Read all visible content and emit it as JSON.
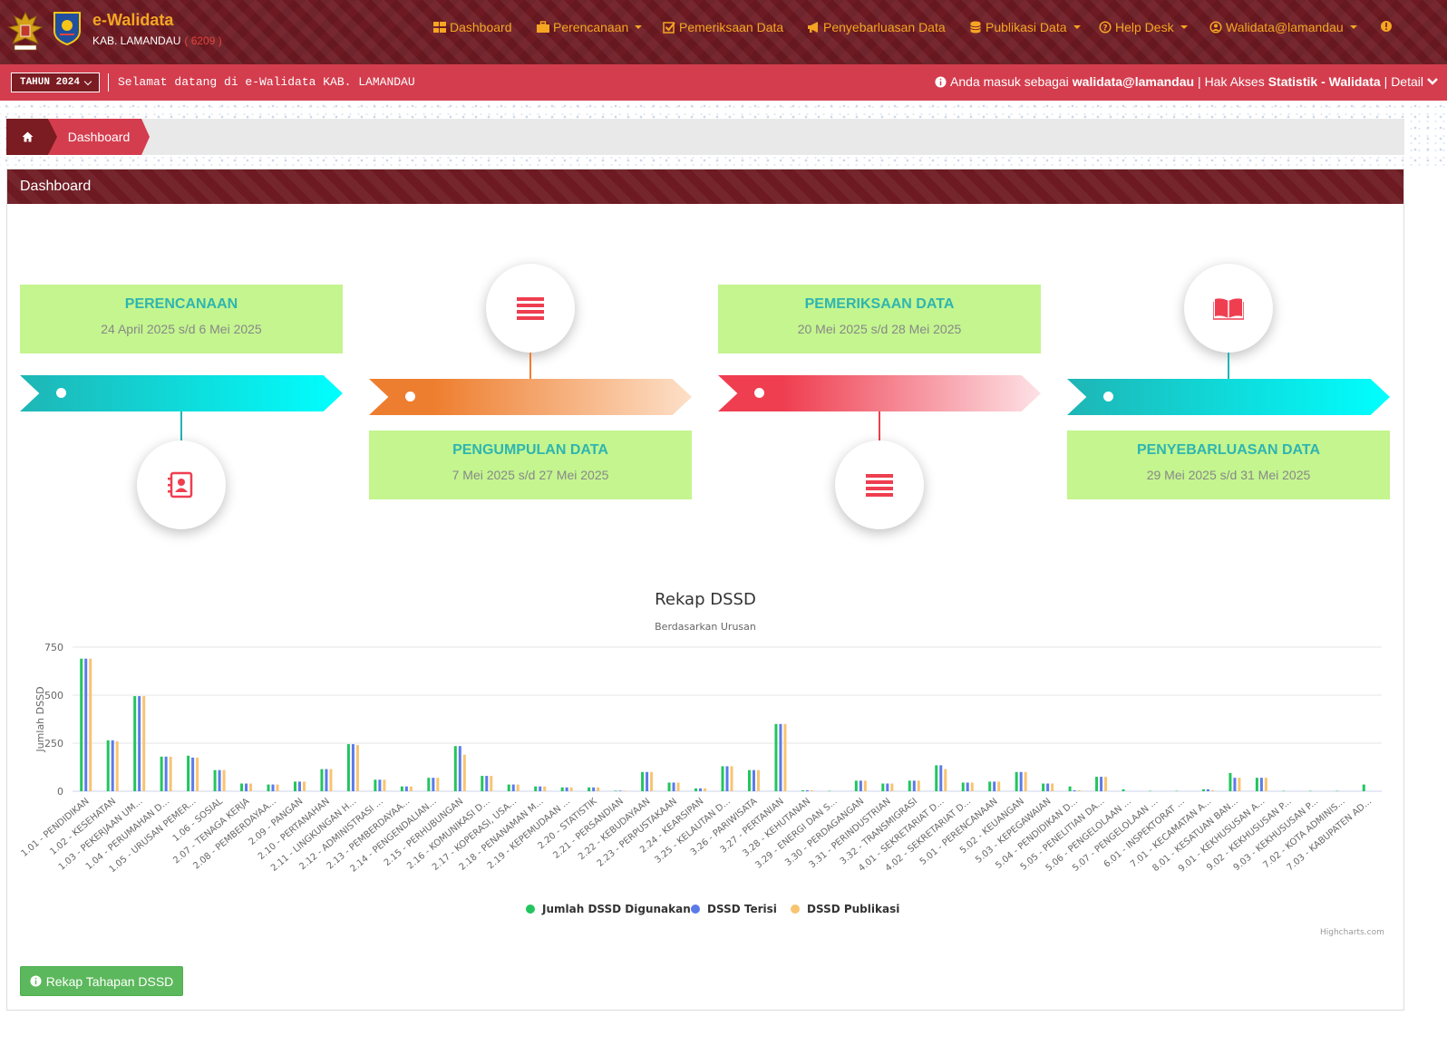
{
  "brand": {
    "title": "e-Walidata",
    "region": "KAB. LAMANDAU",
    "code": "( 6209 )"
  },
  "nav": {
    "dashboard": "Dashboard",
    "perencanaan": "Perencanaan",
    "pemeriksaan": "Pemeriksaan Data",
    "penyebarluasan": "Penyebarluasan Data",
    "publikasi": "Publikasi Data",
    "helpdesk": "Help Desk",
    "user": "Walidata@lamandau"
  },
  "subbar": {
    "year": "TAHUN 2024",
    "welcome": "Selamat datang di e-Walidata KAB. LAMANDAU",
    "login_prefix": "Anda masuk sebagai",
    "login_user": "walidata@lamandau",
    "access_prefix": "| Hak Akses",
    "access_role": "Statistik - Walidata",
    "detail": "| Detail"
  },
  "breadcrumb": {
    "current": "Dashboard"
  },
  "panel": {
    "title": "Dashboard"
  },
  "stages": [
    {
      "title": "PERENCANAAN",
      "date": "24 April 2025 s/d 6 Mei 2025",
      "icon": "address-book-icon",
      "color": "#1fb5b5"
    },
    {
      "title": "PENGUMPULAN DATA",
      "date": "7 Mei 2025 s/d 27 Mei 2025",
      "icon": "list-icon",
      "color": "#ee7e2f"
    },
    {
      "title": "PEMERIKSAAN DATA",
      "date": "20 Mei 2025 s/d 28 Mei 2025",
      "icon": "list-icon",
      "color": "#ef3e50"
    },
    {
      "title": "PENYEBARLUASAN DATA",
      "date": "29 Mei 2025 s/d 31 Mei 2025",
      "icon": "book-icon",
      "color": "#1fb5b5"
    }
  ],
  "button": {
    "rekap": "Rekap Tahapan DSSD"
  },
  "chart_data": {
    "type": "bar",
    "title": "Rekap DSSD",
    "subtitle": "Berdasarkan Urusan",
    "ylabel": "Jumlah DSSD",
    "ylim": [
      0,
      750
    ],
    "yticks": [
      0,
      250,
      500,
      750
    ],
    "credit": "Highcharts.com",
    "legend": "bottom-center",
    "categories": [
      "1.01 - PENDIDIKAN",
      "1.02 - KESEHATAN",
      "1.03 - PEKERJAAN UM...",
      "1.04 - PERUMAHAN D...",
      "1.05 - URUSAN PEMER...",
      "1.06 - SOSIAL",
      "2.07 - TENAGA KERJA",
      "2.08 - PEMBERDAYAA...",
      "2.09 - PANGAN",
      "2.10 - PERTANAHAN",
      "2.11 - LINGKUNGAN H...",
      "2.12 - ADMINISTRASI ...",
      "2.13 - PEMBERDAYAA...",
      "2.14 - PENGENDALIAN...",
      "2.15 - PERHUBUNGAN",
      "2.16 - KOMUNIKASI D...",
      "2.17 - KOPERASI, USA...",
      "2.18 - PENANAMAN M...",
      "2.19 - KEPEMUDAAN ...",
      "2.20 - STATISTIK",
      "2.21 - PERSANDIAN",
      "2.22 - KEBUDAYAAN",
      "2.23 - PERPUSTAKAAN",
      "2.24 - KEARSIPAN",
      "3.25 - KELAUTAN D...",
      "3.26 - PARIWISATA",
      "3.27 - PERTANIAN",
      "3.28 - KEHUTANAN",
      "3.29 - ENERGI DAN S...",
      "3.30 - PERDAGANGAN",
      "3.31 - PERINDUSTRIAN",
      "3.32 - TRANSMIGRASI",
      "4.01 - SEKRETARIAT D...",
      "4.02 - SEKRETARIAT D...",
      "5.01 - PERENCANAAN",
      "5.02 - KEUANGAN",
      "5.03 - KEPEGAWAIAN",
      "5.04 - PENDIDIKAN D...",
      "5.05 - PENELITIAN DA...",
      "5.06 - PENGELOLAAN ...",
      "5.07 - PENGELOLAAN ...",
      "6.01 - INSPEKTORAT ...",
      "7.01 - KECAMATAN A...",
      "8.01 - KESATUAN BAN...",
      "9.01 - KEKHUSUSAN A...",
      "9.02 - KEKHUSUSAN P...",
      "9.03 - KEKHUSUSAN P...",
      "7.02 - KOTA ADMINIS...",
      "7.03 - KABUPATEN AD..."
    ],
    "series": [
      {
        "name": "Jumlah DSSD Digunakan",
        "color": "#22c55e",
        "values": [
          690,
          265,
          495,
          180,
          185,
          110,
          40,
          35,
          50,
          115,
          245,
          60,
          25,
          70,
          235,
          80,
          35,
          25,
          20,
          20,
          3,
          100,
          45,
          15,
          130,
          110,
          350,
          5,
          2,
          55,
          40,
          55,
          135,
          45,
          50,
          100,
          40,
          25,
          75,
          10,
          2,
          2,
          10,
          95,
          70,
          2,
          2,
          2,
          35
        ]
      },
      {
        "name": "DSSD Terisi",
        "color": "#5b7be9",
        "values": [
          690,
          265,
          495,
          180,
          175,
          110,
          40,
          35,
          50,
          115,
          245,
          60,
          25,
          70,
          235,
          80,
          35,
          25,
          20,
          20,
          3,
          100,
          45,
          15,
          130,
          110,
          350,
          5,
          0,
          55,
          40,
          55,
          135,
          45,
          50,
          100,
          40,
          5,
          75,
          0,
          0,
          0,
          10,
          70,
          70,
          0,
          0,
          0,
          0
        ]
      },
      {
        "name": "DSSD Publikasi",
        "color": "#f8c471",
        "values": [
          690,
          260,
          495,
          180,
          175,
          110,
          40,
          35,
          50,
          115,
          240,
          60,
          25,
          70,
          190,
          80,
          35,
          25,
          20,
          20,
          3,
          100,
          45,
          15,
          130,
          110,
          350,
          5,
          0,
          55,
          40,
          55,
          115,
          45,
          50,
          100,
          40,
          5,
          75,
          0,
          0,
          0,
          5,
          70,
          70,
          0,
          0,
          0,
          0
        ]
      }
    ]
  }
}
